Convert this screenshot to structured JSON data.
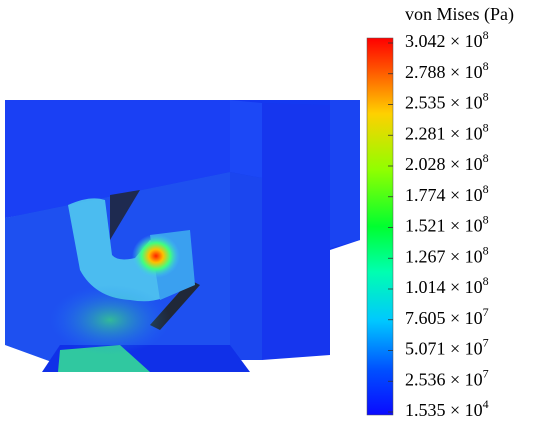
{
  "colorbar": {
    "title": "von Mises (Pa)",
    "ticks": [
      {
        "mantissa": "3.042 × 10",
        "exponent": "8"
      },
      {
        "mantissa": "2.788 × 10",
        "exponent": "8"
      },
      {
        "mantissa": "2.535 × 10",
        "exponent": "8"
      },
      {
        "mantissa": "2.281 × 10",
        "exponent": "8"
      },
      {
        "mantissa": "2.028 × 10",
        "exponent": "8"
      },
      {
        "mantissa": "1.774 × 10",
        "exponent": "8"
      },
      {
        "mantissa": "1.521 × 10",
        "exponent": "8"
      },
      {
        "mantissa": "1.267 × 10",
        "exponent": "8"
      },
      {
        "mantissa": "1.014 × 10",
        "exponent": "8"
      },
      {
        "mantissa": "7.605 × 10",
        "exponent": "7"
      },
      {
        "mantissa": "5.071 × 10",
        "exponent": "7"
      },
      {
        "mantissa": "2.536 × 10",
        "exponent": "7"
      },
      {
        "mantissa": "1.535 × 10",
        "exponent": "4"
      }
    ]
  }
}
